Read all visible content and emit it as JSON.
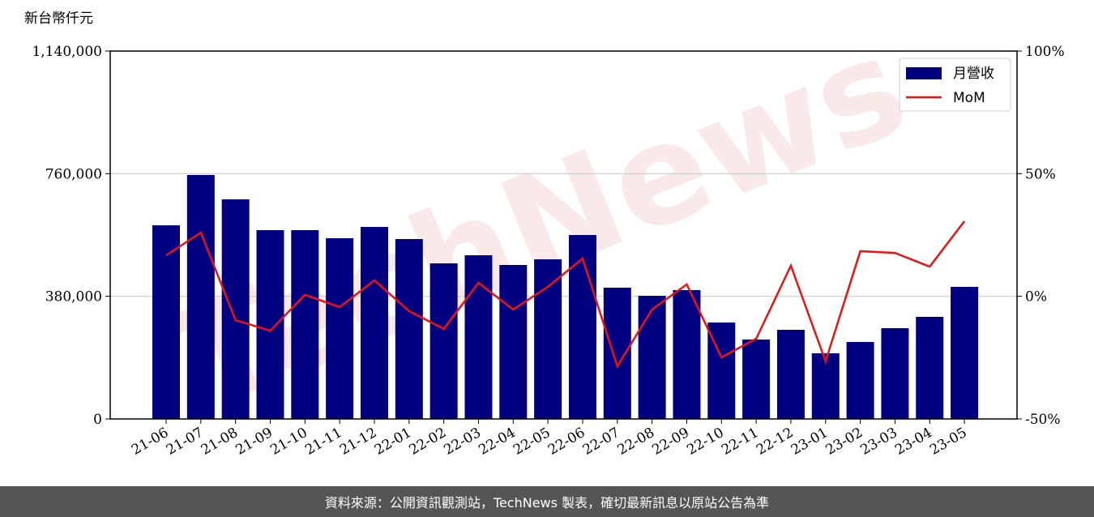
{
  "chart_data": {
    "type": "bar-line",
    "ylabel": "新台幣仟元",
    "watermark": "TechNews",
    "footer": "資料來源：公開資訊觀測站，TechNews 製表，確切最新訊息以原站公告為準",
    "categories": [
      "21-06",
      "21-07",
      "21-08",
      "21-09",
      "21-10",
      "21-11",
      "21-12",
      "22-01",
      "22-02",
      "22-03",
      "22-04",
      "22-05",
      "22-06",
      "22-07",
      "22-08",
      "22-09",
      "22-10",
      "22-11",
      "22-12",
      "23-01",
      "23-02",
      "23-03",
      "23-04",
      "23-05"
    ],
    "series": [
      {
        "name": "月營收",
        "color": "#000080",
        "axis": "y",
        "values": [
          600000,
          756000,
          680500,
          585000,
          585000,
          560000,
          595000,
          557400,
          482100,
          507200,
          477100,
          494700,
          570000,
          406800,
          381700,
          399200,
          298800,
          246100,
          276200,
          203400,
          238500,
          281200,
          316400,
          409300
        ]
      },
      {
        "name": "MoM",
        "color": "#ee1111",
        "axis": "y2",
        "values": [
          16.7,
          26.0,
          -9.7,
          -14.0,
          0.6,
          -4.4,
          6.5,
          -6.0,
          -13.3,
          5.5,
          -5.4,
          3.9,
          15.4,
          -28.5,
          -5.4,
          4.9,
          -24.9,
          -17.3,
          12.5,
          -26.5,
          18.4,
          17.7,
          12.1,
          30.6
        ]
      }
    ],
    "ylim": [
      0,
      1140000
    ],
    "yticks": [
      0,
      {
        "value": 380000,
        "label": "380,000"
      },
      {
        "value": 760000,
        "label": "760,000"
      },
      {
        "value": 1140000,
        "label": "1,140,000"
      }
    ],
    "y2lim": [
      -50,
      100
    ],
    "y2ticks": [
      {
        "value": -50,
        "label": "-50%"
      },
      {
        "value": 0,
        "label": "0%"
      },
      {
        "value": 50,
        "label": "50%"
      },
      {
        "value": 100,
        "label": "100%"
      }
    ],
    "grid": true,
    "legend": "upper right"
  }
}
